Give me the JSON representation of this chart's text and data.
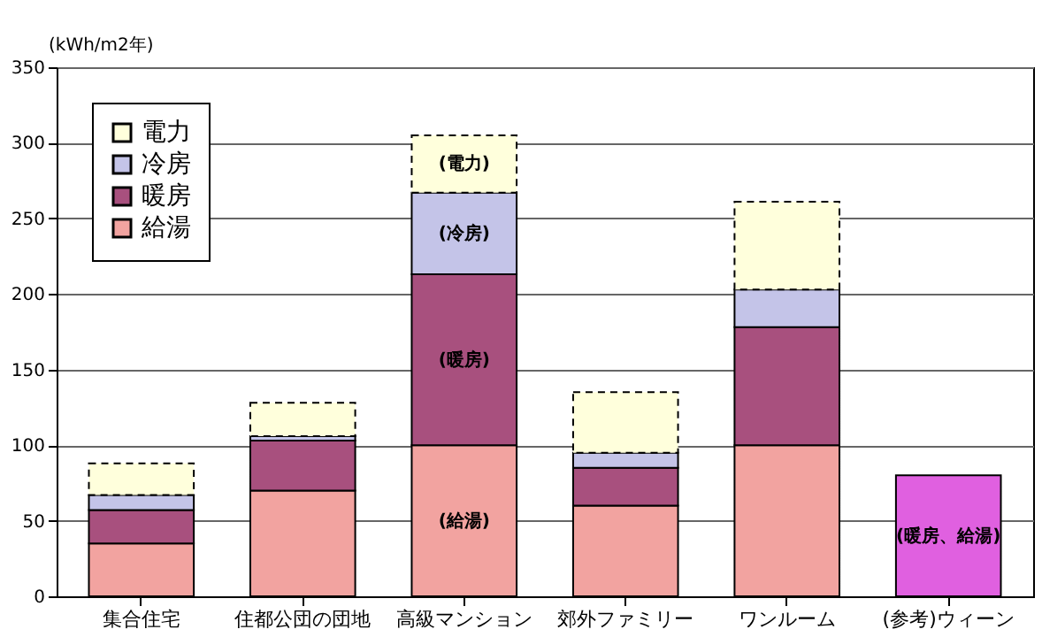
{
  "chart_data": {
    "type": "bar",
    "stacked": true,
    "ylabel": "(kWh/m2年)",
    "categories": [
      "集合住宅",
      "住都公団の団地",
      "高級マンション",
      "郊外ファミリー",
      "ワンルーム",
      "(参考)ウィーン"
    ],
    "series": [
      {
        "name": "給湯",
        "color": "#f2a3a0",
        "values": [
          35,
          70,
          100,
          60,
          100,
          null
        ]
      },
      {
        "name": "暖房",
        "color": "#a8507e",
        "values": [
          22,
          33,
          113,
          25,
          78,
          null
        ]
      },
      {
        "name": "冷房",
        "color": "#c4c4e8",
        "values": [
          10,
          3,
          54,
          10,
          25,
          null
        ]
      },
      {
        "name": "電力",
        "color": "#ffffdc",
        "line_style": "dashed",
        "values": [
          21,
          22,
          38,
          40,
          58,
          null
        ]
      },
      {
        "color": "#e060e0",
        "values": [
          null,
          null,
          null,
          null,
          null,
          80
        ]
      }
    ],
    "annotations": [
      "(電力)",
      "(冷房)",
      "(暖房)",
      "(給湯)",
      "(暖房、給湯)"
    ],
    "ylim": [
      0,
      350
    ],
    "yticks": [
      0,
      50,
      100,
      150,
      200,
      250,
      300,
      350
    ],
    "grid": "y",
    "legend": "top left"
  }
}
